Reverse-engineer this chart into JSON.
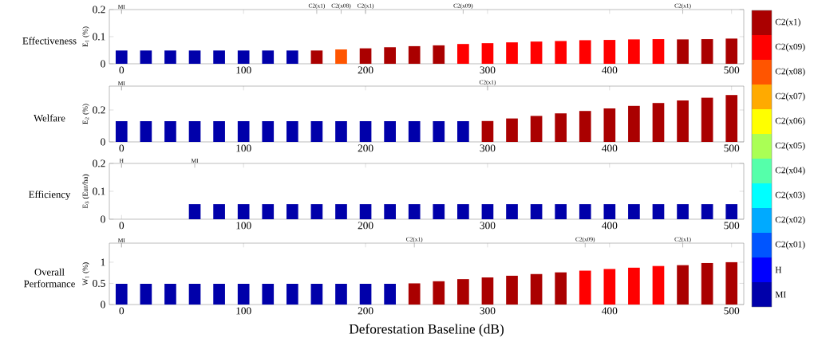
{
  "chart_data": [
    {
      "type": "bar",
      "title": "Effectiveness",
      "ylabel": "E$_{1}$ (%)",
      "x": [
        0,
        20,
        40,
        60,
        80,
        100,
        120,
        140,
        160,
        180,
        200,
        220,
        240,
        260,
        280,
        300,
        320,
        340,
        360,
        380,
        400,
        420,
        440,
        460,
        480,
        500
      ],
      "values": [
        0.049,
        0.049,
        0.049,
        0.049,
        0.049,
        0.049,
        0.049,
        0.049,
        0.049,
        0.053,
        0.057,
        0.061,
        0.065,
        0.068,
        0.073,
        0.076,
        0.079,
        0.082,
        0.084,
        0.087,
        0.088,
        0.09,
        0.091,
        0.09,
        0.091,
        0.093
      ],
      "colors": [
        "#0000aa",
        "#0000aa",
        "#0000aa",
        "#0000aa",
        "#0000aa",
        "#0000aa",
        "#0000aa",
        "#0000aa",
        "#aa0000",
        "#ff5500",
        "#aa0000",
        "#aa0000",
        "#aa0000",
        "#aa0000",
        "#ff0000",
        "#ff0000",
        "#ff0000",
        "#ff0000",
        "#ff0000",
        "#ff0000",
        "#ff0000",
        "#ff0000",
        "#ff0000",
        "#aa0000",
        "#aa0000",
        "#aa0000"
      ],
      "xlim": [
        -10,
        510
      ],
      "xticks": [
        0,
        100,
        200,
        300,
        400,
        500
      ],
      "ylim": [
        0,
        0.2
      ],
      "yticks": [
        0,
        0.1,
        0.2
      ],
      "annotations": [
        "MI",
        "C2(x1)",
        "C2(x08)",
        "C2(x1)",
        "C2(x09)",
        "C2(x1)"
      ]
    },
    {
      "type": "bar",
      "title": "Welfare",
      "ylabel": "E$_{2}$ (%)",
      "x": [
        0,
        20,
        40,
        60,
        80,
        100,
        120,
        140,
        160,
        180,
        200,
        220,
        240,
        260,
        280,
        300,
        320,
        340,
        360,
        380,
        400,
        420,
        440,
        460,
        480,
        500
      ],
      "values": [
        0.13,
        0.13,
        0.13,
        0.13,
        0.13,
        0.13,
        0.13,
        0.13,
        0.13,
        0.13,
        0.13,
        0.13,
        0.13,
        0.13,
        0.13,
        0.131,
        0.147,
        0.163,
        0.179,
        0.194,
        0.21,
        0.226,
        0.244,
        0.26,
        0.277,
        0.294
      ],
      "colors": [
        "#0000aa",
        "#0000aa",
        "#0000aa",
        "#0000aa",
        "#0000aa",
        "#0000aa",
        "#0000aa",
        "#0000aa",
        "#0000aa",
        "#0000aa",
        "#0000aa",
        "#0000aa",
        "#0000aa",
        "#0000aa",
        "#0000aa",
        "#aa0000",
        "#aa0000",
        "#aa0000",
        "#aa0000",
        "#aa0000",
        "#aa0000",
        "#aa0000",
        "#aa0000",
        "#aa0000",
        "#aa0000",
        "#aa0000"
      ],
      "xlim": [
        -10,
        510
      ],
      "xticks": [
        0,
        100,
        200,
        300,
        400,
        500
      ],
      "ylim": [
        0,
        0.35
      ],
      "yticks": [
        0,
        0.2
      ],
      "annotations": [
        "MI",
        "C2(x1)"
      ]
    },
    {
      "type": "bar",
      "title": "Efficiency",
      "ylabel": "E$_{3}$ (Eur/ha)",
      "x": [
        0,
        20,
        40,
        60,
        80,
        100,
        120,
        140,
        160,
        180,
        200,
        220,
        240,
        260,
        280,
        300,
        320,
        340,
        360,
        380,
        400,
        420,
        440,
        460,
        480,
        500
      ],
      "values": [
        0,
        0,
        0,
        0.054,
        0.054,
        0.054,
        0.054,
        0.054,
        0.054,
        0.054,
        0.054,
        0.054,
        0.054,
        0.054,
        0.054,
        0.054,
        0.054,
        0.054,
        0.054,
        0.054,
        0.054,
        0.054,
        0.054,
        0.054,
        0.054,
        0.054
      ],
      "colors": [
        "#0000ff",
        "#0000ff",
        "#0000ff",
        "#0000aa",
        "#0000aa",
        "#0000aa",
        "#0000aa",
        "#0000aa",
        "#0000aa",
        "#0000aa",
        "#0000aa",
        "#0000aa",
        "#0000aa",
        "#0000aa",
        "#0000aa",
        "#0000aa",
        "#0000aa",
        "#0000aa",
        "#0000aa",
        "#0000aa",
        "#0000aa",
        "#0000aa",
        "#0000aa",
        "#0000aa",
        "#0000aa",
        "#0000aa"
      ],
      "xlim": [
        -10,
        510
      ],
      "xticks": [
        0,
        100,
        200,
        300,
        400,
        500
      ],
      "ylim": [
        0,
        0.2
      ],
      "yticks": [
        0,
        0.1,
        0.2
      ],
      "annotations": [
        "H",
        "MI"
      ]
    },
    {
      "type": "bar",
      "title": "Overall Performance",
      "ylabel": "W$_{1}$ (%)",
      "xlabel": "Deforestation Baseline (dB)",
      "x": [
        0,
        20,
        40,
        60,
        80,
        100,
        120,
        140,
        160,
        180,
        200,
        220,
        240,
        260,
        280,
        300,
        320,
        340,
        360,
        380,
        400,
        420,
        440,
        460,
        480,
        500
      ],
      "values": [
        0.49,
        0.49,
        0.49,
        0.49,
        0.49,
        0.49,
        0.49,
        0.49,
        0.49,
        0.49,
        0.49,
        0.49,
        0.5,
        0.55,
        0.6,
        0.64,
        0.68,
        0.72,
        0.76,
        0.8,
        0.84,
        0.87,
        0.91,
        0.93,
        0.98,
        1.0
      ],
      "colors": [
        "#0000aa",
        "#0000aa",
        "#0000aa",
        "#0000aa",
        "#0000aa",
        "#0000aa",
        "#0000aa",
        "#0000aa",
        "#0000aa",
        "#0000aa",
        "#0000aa",
        "#0000aa",
        "#aa0000",
        "#aa0000",
        "#aa0000",
        "#aa0000",
        "#aa0000",
        "#aa0000",
        "#aa0000",
        "#ff0000",
        "#ff0000",
        "#ff0000",
        "#ff0000",
        "#aa0000",
        "#aa0000",
        "#aa0000"
      ],
      "xlim": [
        -10,
        510
      ],
      "xticks": [
        0,
        100,
        200,
        300,
        400,
        500
      ],
      "ylim": [
        0,
        1.45
      ],
      "yticks": [
        0,
        0.5,
        1
      ],
      "annotations": [
        "MI",
        "C2(x1)",
        "C2(x09)",
        "C2(x1)"
      ]
    },
    {
      "type": "other",
      "categories": [
        "C2(x1)",
        "C2(x09)",
        "C2(x08)",
        "C2(x07)",
        "C2(x06)",
        "C2(x05)",
        "C2(x04)",
        "C2(x03)",
        "C2(x02)",
        "C2(x01)",
        "H",
        "MI"
      ],
      "colors": [
        "#aa0000",
        "#ff0000",
        "#ff5500",
        "#ffaa00",
        "#ffff00",
        "#aaff55",
        "#55ffaa",
        "#00ffff",
        "#00aaff",
        "#0055ff",
        "#0000ff",
        "#0000aa"
      ]
    }
  ]
}
